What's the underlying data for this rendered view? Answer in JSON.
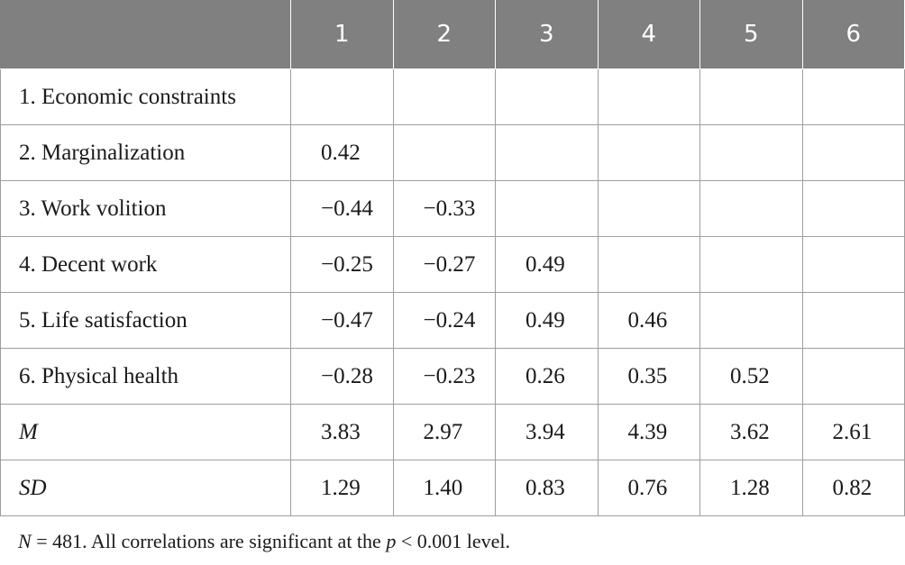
{
  "table": {
    "headers": [
      "",
      "1",
      "2",
      "3",
      "4",
      "5",
      "6"
    ],
    "rows": [
      {
        "label": "1. Economic constraints",
        "italic": false,
        "cells": [
          "",
          "",
          "",
          "",
          "",
          ""
        ]
      },
      {
        "label": "2. Marginalization",
        "italic": false,
        "cells": [
          "0.42",
          "",
          "",
          "",
          "",
          ""
        ]
      },
      {
        "label": "3. Work volition",
        "italic": false,
        "cells": [
          "−0.44",
          "−0.33",
          "",
          "",
          "",
          ""
        ]
      },
      {
        "label": "4. Decent work",
        "italic": false,
        "cells": [
          "−0.25",
          "−0.27",
          "0.49",
          "",
          "",
          ""
        ]
      },
      {
        "label": "5. Life satisfaction",
        "italic": false,
        "cells": [
          "−0.47",
          "−0.24",
          "0.49",
          "0.46",
          "",
          ""
        ]
      },
      {
        "label": "6. Physical health",
        "italic": false,
        "cells": [
          "−0.28",
          "−0.23",
          "0.26",
          "0.35",
          "0.52",
          ""
        ]
      },
      {
        "label": "M",
        "italic": true,
        "cells": [
          "3.83",
          "2.97",
          "3.94",
          "4.39",
          "3.62",
          "2.61"
        ]
      },
      {
        "label": "SD",
        "italic": true,
        "cells": [
          "1.29",
          "1.40",
          "0.83",
          "0.76",
          "1.28",
          "0.82"
        ]
      }
    ]
  },
  "note": {
    "n_symbol": "N",
    "n_text": " = 481. All correlations are significant at the ",
    "p_symbol": "p",
    "p_text": " < 0.001 level."
  },
  "colors": {
    "header_bg": "#808080",
    "header_text": "#ffffff",
    "grid": "#9e9e9e"
  }
}
